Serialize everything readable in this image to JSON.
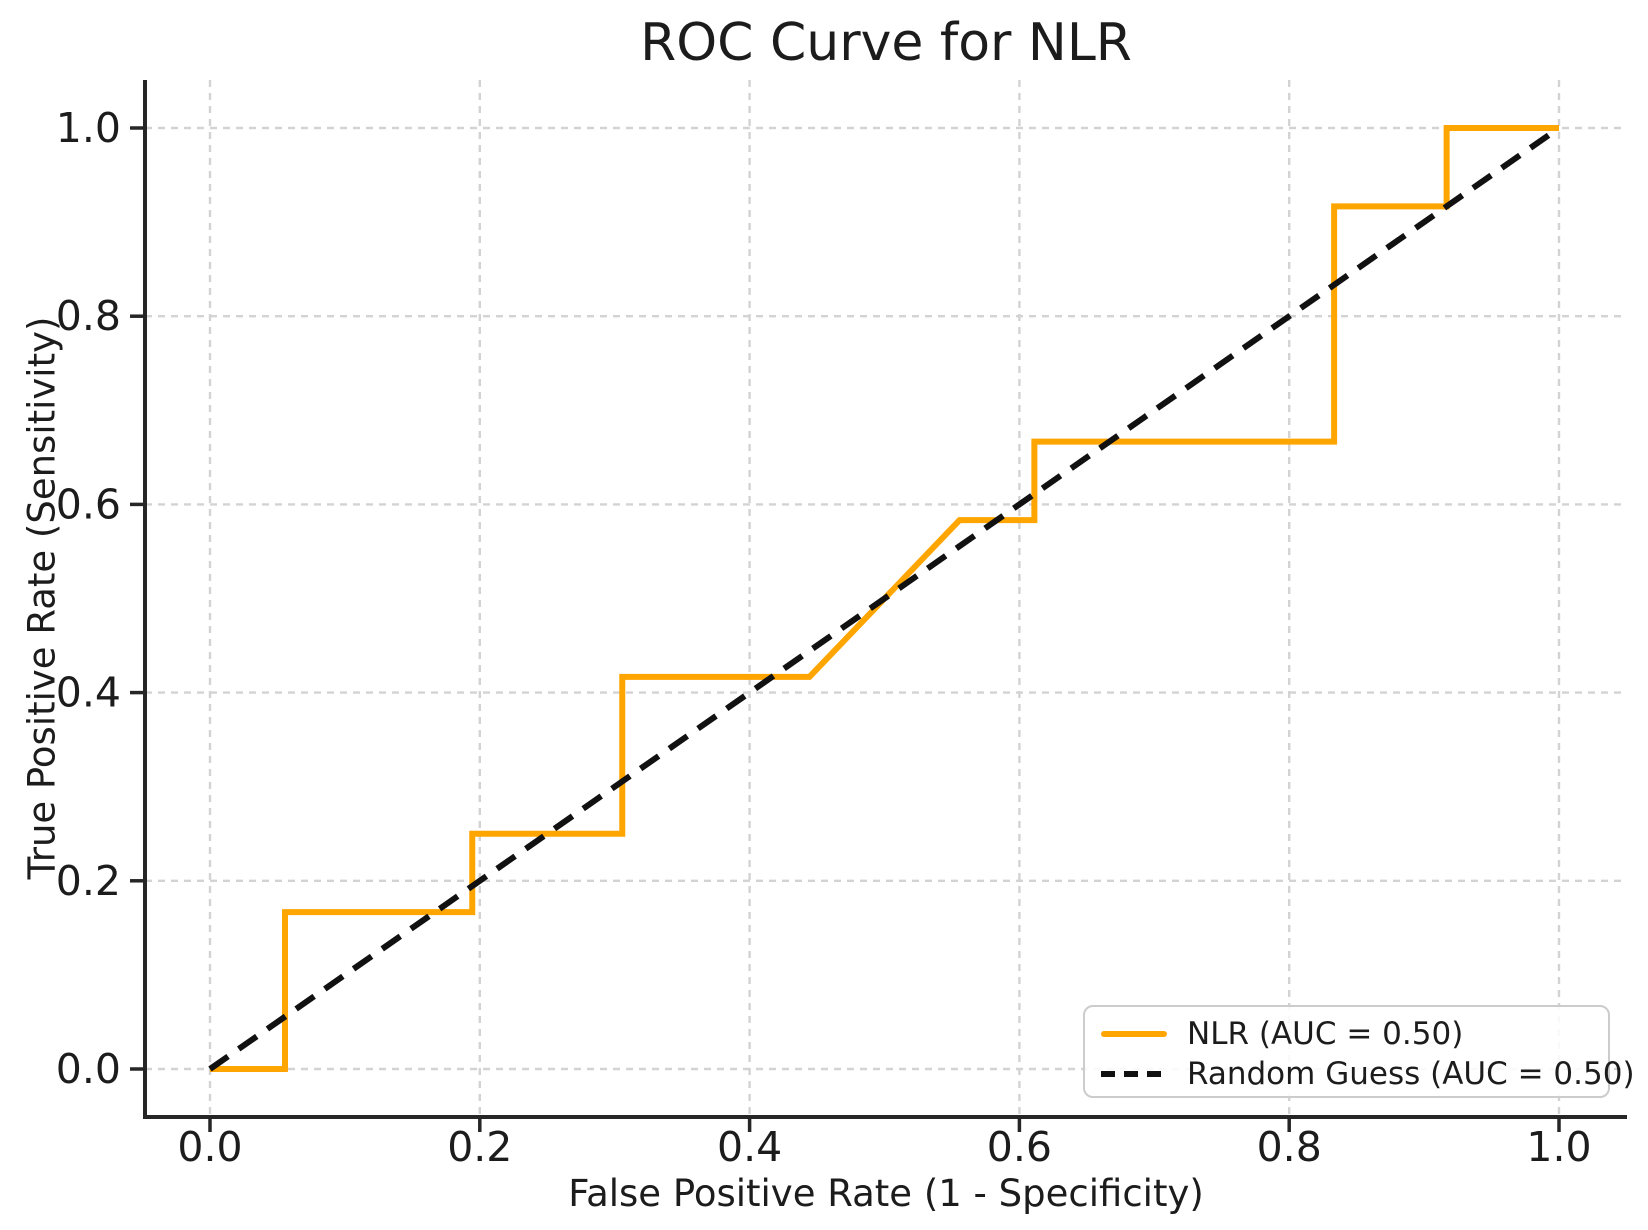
{
  "title": "ROC Curve for NLR",
  "axes": {
    "xlabel": "False Positive Rate (1 - Specificity)",
    "ylabel": "True Positive Rate (Sensitivity)"
  },
  "legend": {
    "items": [
      {
        "label": "NLR (AUC = 0.50)",
        "color": "#FFA500",
        "line_style": "solid"
      },
      {
        "label": "Random Guess (AUC = 0.50)",
        "color": "#111111",
        "line_style": "dashed"
      }
    ]
  },
  "colors": {
    "nlr_line": "#FFA500",
    "random_line": "#111111",
    "grid": "#d3d3d3",
    "spine": "#262626",
    "text": "#1c1c1c",
    "background": "#ffffff",
    "legend_border": "#cccccc"
  },
  "chart_data": {
    "type": "line",
    "title": "ROC Curve for NLR",
    "xlabel": "False Positive Rate (1 - Specificity)",
    "ylabel": "True Positive Rate (Sensitivity)",
    "xlim": [
      -0.05,
      1.05
    ],
    "ylim": [
      -0.05,
      1.05
    ],
    "xticks": [
      "0.0",
      "0.2",
      "0.4",
      "0.6",
      "0.8",
      "1.0"
    ],
    "yticks": [
      "0.0",
      "0.2",
      "0.4",
      "0.6",
      "0.8",
      "1.0"
    ],
    "grid": true,
    "grid_style": "dashed",
    "legend_position": "lower right",
    "series": [
      {
        "name": "NLR (AUC = 0.50)",
        "color": "#FFA500",
        "style": "solid",
        "points": [
          [
            0.0,
            0.0
          ],
          [
            0.0556,
            0.0
          ],
          [
            0.0556,
            0.1667
          ],
          [
            0.1944,
            0.1667
          ],
          [
            0.1944,
            0.25
          ],
          [
            0.3056,
            0.25
          ],
          [
            0.3056,
            0.4167
          ],
          [
            0.4444,
            0.4167
          ],
          [
            0.5556,
            0.5833
          ],
          [
            0.6111,
            0.5833
          ],
          [
            0.6111,
            0.6667
          ],
          [
            0.8333,
            0.6667
          ],
          [
            0.8333,
            0.9167
          ],
          [
            0.9167,
            0.9167
          ],
          [
            0.9167,
            1.0
          ],
          [
            1.0,
            1.0
          ]
        ]
      },
      {
        "name": "Random Guess (AUC = 0.50)",
        "color": "#111111",
        "style": "dashed",
        "points": [
          [
            0.0,
            0.0
          ],
          [
            1.0,
            1.0
          ]
        ]
      }
    ]
  }
}
